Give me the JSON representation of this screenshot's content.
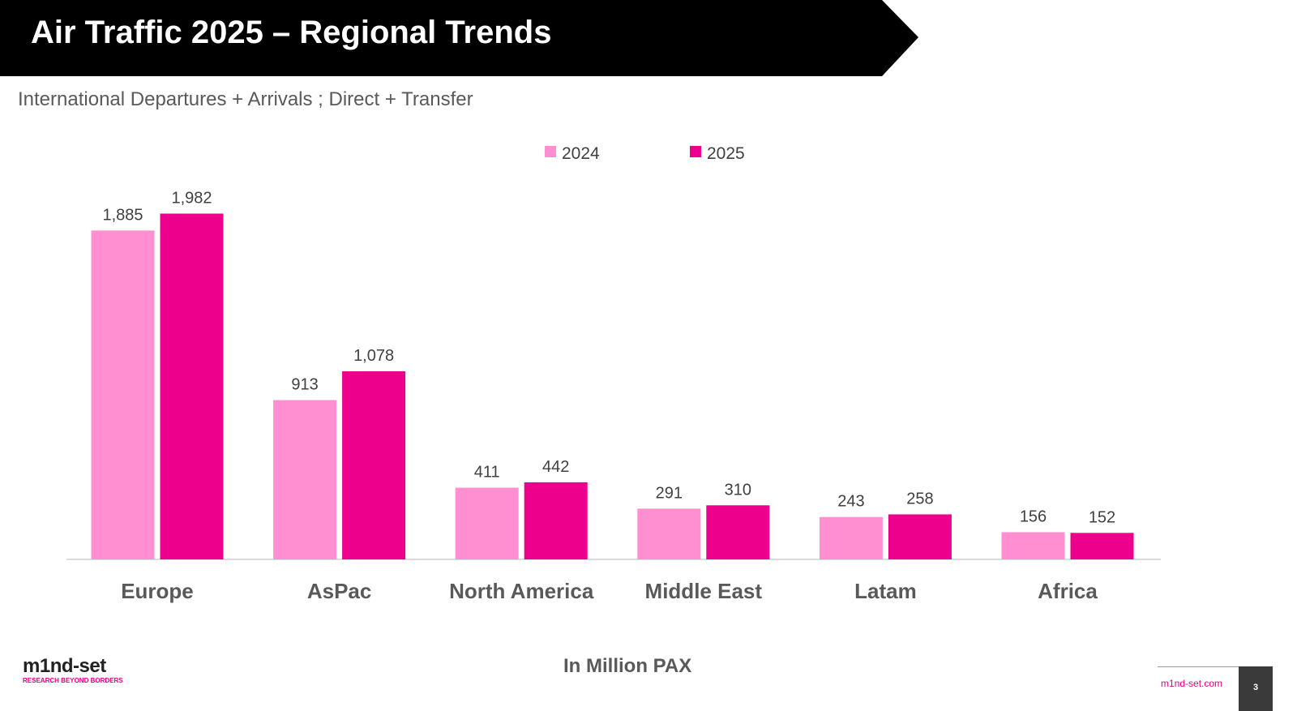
{
  "header": {
    "title": "Air Traffic 2025 – Regional Trends",
    "subtitle": "International Departures + Arrivals ; Direct + Transfer"
  },
  "footer": {
    "unit_note": "In Million PAX",
    "logo_text": "m1nd-set",
    "logo_tagline": "RESEARCH BEYOND BORDERS",
    "website": "m1nd-set.com",
    "page_number": "3"
  },
  "colors": {
    "title_band": "#000000",
    "series_2024": "#ff8fd1",
    "series_2025": "#ec008c",
    "text_gray": "#595959"
  },
  "chart_data": {
    "type": "bar",
    "title": "",
    "xlabel": "",
    "ylabel": "",
    "categories": [
      "Europe",
      "AsPac",
      "North America",
      "Middle East",
      "Latam",
      "Africa"
    ],
    "series": [
      {
        "name": "2024",
        "values": [
          1885,
          913,
          411,
          291,
          243,
          156
        ],
        "labels": [
          "1,885",
          "913",
          "411",
          "291",
          "243",
          "156"
        ]
      },
      {
        "name": "2025",
        "values": [
          1982,
          1078,
          442,
          310,
          258,
          152
        ],
        "labels": [
          "1,982",
          "1,078",
          "442",
          "310",
          "258",
          "152"
        ]
      }
    ],
    "ylim": [
      0,
      2000
    ],
    "grid": false,
    "legend_position": "top-center",
    "data_labels": true
  }
}
